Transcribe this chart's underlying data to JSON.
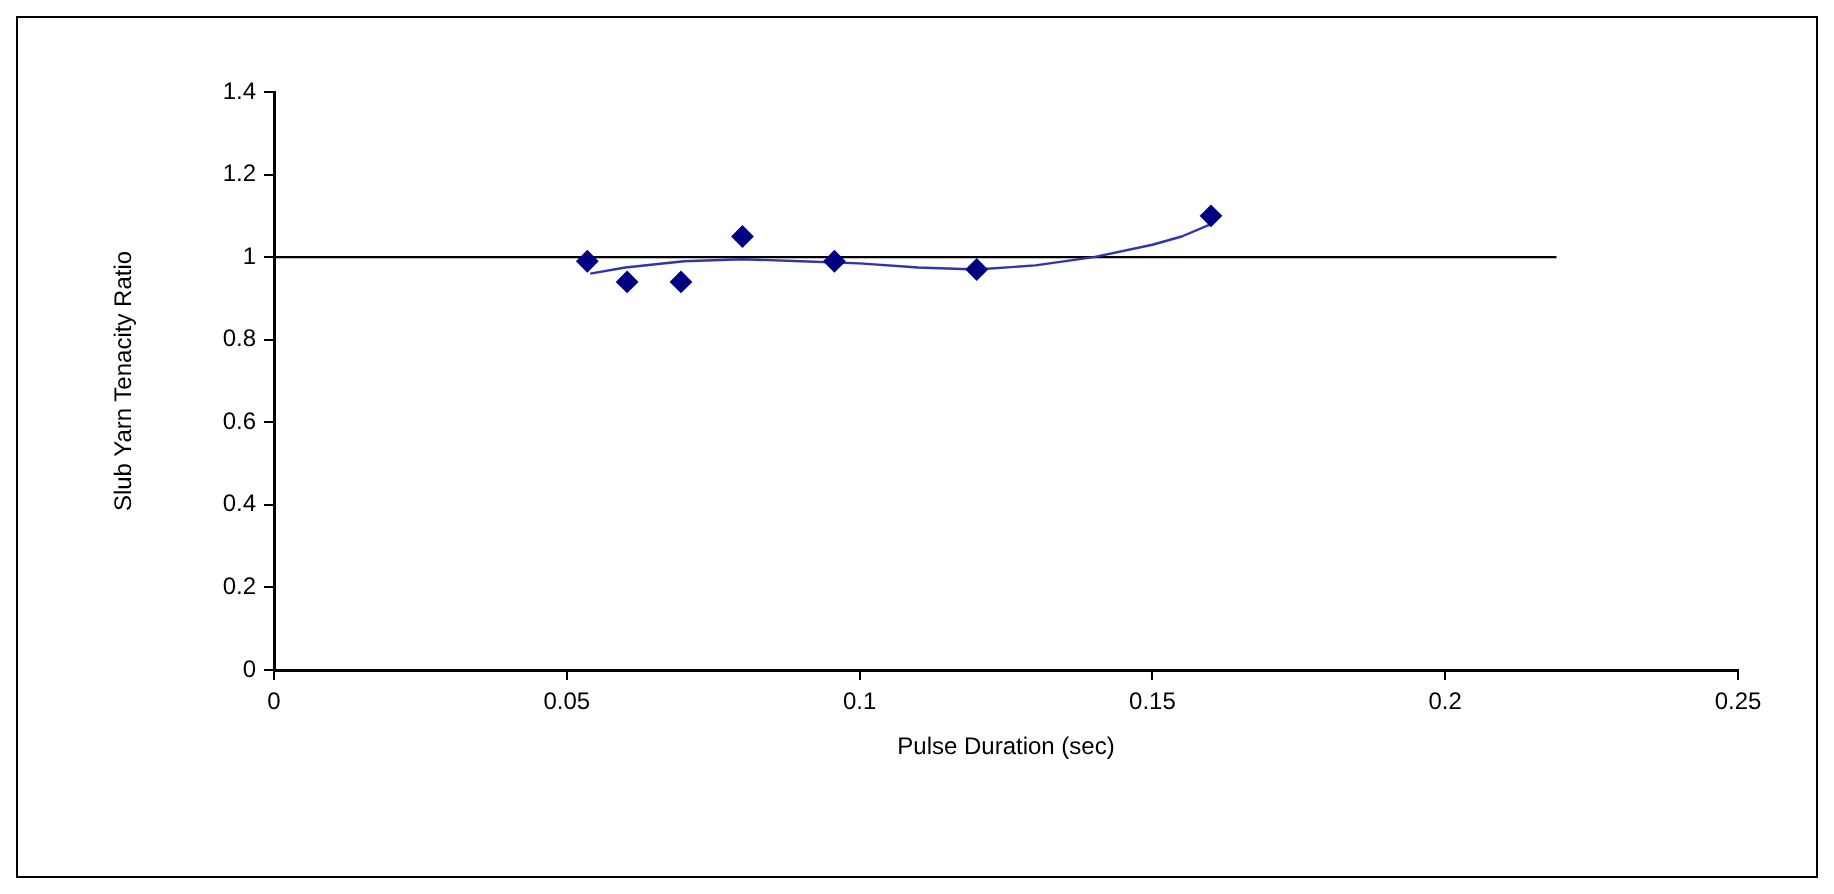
{
  "chart_data": {
    "type": "scatter",
    "xlabel": "Pulse Duration (sec)",
    "ylabel": "Slub Yarn Tenacity Ratio",
    "xlim": [
      0,
      0.25
    ],
    "xticks": [
      0,
      0.05,
      0.1,
      0.15,
      0.2,
      0.25
    ],
    "ylim": [
      0,
      1.4
    ],
    "yticks": [
      0,
      0.2,
      0.4,
      0.6,
      0.8,
      1,
      1.2,
      1.4
    ],
    "grid": false,
    "legend": false,
    "marker": "diamond",
    "series": [
      {
        "color": "#000080",
        "x": [
          0.0535,
          0.0603,
          0.0695,
          0.08,
          0.0957,
          0.12,
          0.16
        ],
        "values": [
          0.99,
          0.94,
          0.94,
          1.05,
          0.99,
          0.97,
          1.1
        ]
      },
      {
        "type": "line",
        "color": "#3333aa",
        "marker": "none",
        "line_style": "solid",
        "x": [
          0.054,
          0.06,
          0.07,
          0.08,
          0.09,
          0.1,
          0.11,
          0.12,
          0.13,
          0.14,
          0.15,
          0.155,
          0.16
        ],
        "values": [
          0.96,
          0.975,
          0.99,
          0.995,
          0.99,
          0.985,
          0.975,
          0.97,
          0.98,
          1.0,
          1.03,
          1.05,
          1.08
        ]
      },
      {
        "type": "line",
        "color": "#000000",
        "marker": "none",
        "line_style": "solid",
        "x": [
          0,
          0.219
        ],
        "values": [
          1,
          1
        ]
      }
    ]
  }
}
